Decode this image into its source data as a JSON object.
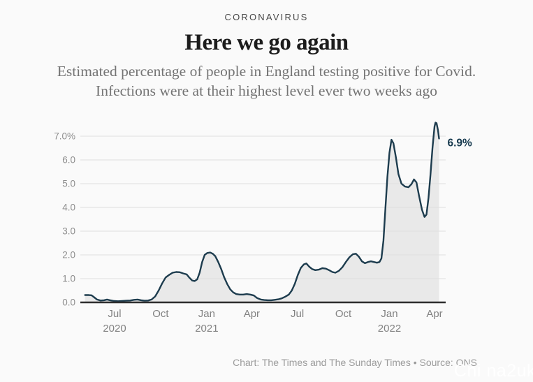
{
  "page": {
    "kicker": "CORONAVIRUS",
    "title": "Here we go again",
    "subtitle": "Estimated percentage of people in England testing positive for Covid. Infections were at their highest level ever two weeks ago",
    "footer": "Chart: The Times and The Sunday Times • Source: ONS",
    "watermark": "Chi na2uk"
  },
  "colors": {
    "background": "#fafafa",
    "line": "#1d3c4e",
    "area_fill": "#e9e9e9",
    "gridline": "#dedede",
    "zero_line": "#2e2e2e",
    "axis_text": "#8d8d8d",
    "end_label": "#16394e"
  },
  "chart_data": {
    "type": "area",
    "title": "Here we go again",
    "subtitle": "Estimated percentage of people in England testing positive for Covid. Infections were at their highest level ever two weeks ago",
    "series_name": "Estimated % of people in England testing positive for Covid",
    "unit": "%",
    "ylim": [
      0,
      7.6
    ],
    "grid": true,
    "legend": "none",
    "end_label": "6.9%",
    "y_ticks": [
      {
        "value": 7,
        "label": "7.0%"
      },
      {
        "value": 6,
        "label": "6.0"
      },
      {
        "value": 5,
        "label": "5.0"
      },
      {
        "value": 4,
        "label": "4.0"
      },
      {
        "value": 3,
        "label": "3.0"
      },
      {
        "value": 2,
        "label": "2.0"
      },
      {
        "value": 1,
        "label": "1.0"
      },
      {
        "value": 0,
        "label": "0.0"
      }
    ],
    "x_ticks": [
      {
        "date": "2020-07-01",
        "label": "Jul",
        "year": "2020"
      },
      {
        "date": "2020-10-01",
        "label": "Oct",
        "year": ""
      },
      {
        "date": "2021-01-01",
        "label": "Jan",
        "year": "2021"
      },
      {
        "date": "2021-04-01",
        "label": "Apr",
        "year": ""
      },
      {
        "date": "2021-07-01",
        "label": "Jul",
        "year": ""
      },
      {
        "date": "2021-10-01",
        "label": "Oct",
        "year": ""
      },
      {
        "date": "2022-01-01",
        "label": "Jan",
        "year": "2022"
      },
      {
        "date": "2022-04-01",
        "label": "Apr",
        "year": ""
      }
    ],
    "points": [
      [
        "2020-05-03",
        0.31
      ],
      [
        "2020-05-10",
        0.31
      ],
      [
        "2020-05-16",
        0.3
      ],
      [
        "2020-05-21",
        0.22
      ],
      [
        "2020-05-27",
        0.12
      ],
      [
        "2020-06-03",
        0.08
      ],
      [
        "2020-06-10",
        0.09
      ],
      [
        "2020-06-16",
        0.12
      ],
      [
        "2020-06-22",
        0.09
      ],
      [
        "2020-06-30",
        0.06
      ],
      [
        "2020-07-08",
        0.05
      ],
      [
        "2020-07-16",
        0.06
      ],
      [
        "2020-07-24",
        0.07
      ],
      [
        "2020-08-01",
        0.08
      ],
      [
        "2020-08-09",
        0.11
      ],
      [
        "2020-08-16",
        0.12
      ],
      [
        "2020-08-23",
        0.09
      ],
      [
        "2020-08-30",
        0.07
      ],
      [
        "2020-09-06",
        0.08
      ],
      [
        "2020-09-13",
        0.12
      ],
      [
        "2020-09-20",
        0.25
      ],
      [
        "2020-09-27",
        0.5
      ],
      [
        "2020-10-04",
        0.8
      ],
      [
        "2020-10-11",
        1.05
      ],
      [
        "2020-10-18",
        1.16
      ],
      [
        "2020-10-25",
        1.25
      ],
      [
        "2020-11-01",
        1.28
      ],
      [
        "2020-11-08",
        1.27
      ],
      [
        "2020-11-15",
        1.22
      ],
      [
        "2020-11-22",
        1.18
      ],
      [
        "2020-11-27",
        1.05
      ],
      [
        "2020-12-03",
        0.92
      ],
      [
        "2020-12-08",
        0.9
      ],
      [
        "2020-12-13",
        0.97
      ],
      [
        "2020-12-18",
        1.25
      ],
      [
        "2020-12-23",
        1.7
      ],
      [
        "2020-12-28",
        2.0
      ],
      [
        "2021-01-02",
        2.08
      ],
      [
        "2021-01-08",
        2.1
      ],
      [
        "2021-01-13",
        2.05
      ],
      [
        "2021-01-18",
        1.95
      ],
      [
        "2021-01-24",
        1.7
      ],
      [
        "2021-01-30",
        1.4
      ],
      [
        "2021-02-05",
        1.05
      ],
      [
        "2021-02-11",
        0.77
      ],
      [
        "2021-02-17",
        0.55
      ],
      [
        "2021-02-23",
        0.42
      ],
      [
        "2021-03-01",
        0.35
      ],
      [
        "2021-03-08",
        0.33
      ],
      [
        "2021-03-15",
        0.33
      ],
      [
        "2021-03-22",
        0.35
      ],
      [
        "2021-03-29",
        0.33
      ],
      [
        "2021-04-05",
        0.29
      ],
      [
        "2021-04-12",
        0.18
      ],
      [
        "2021-04-19",
        0.12
      ],
      [
        "2021-04-26",
        0.1
      ],
      [
        "2021-05-03",
        0.09
      ],
      [
        "2021-05-10",
        0.09
      ],
      [
        "2021-05-17",
        0.11
      ],
      [
        "2021-05-24",
        0.13
      ],
      [
        "2021-05-31",
        0.17
      ],
      [
        "2021-06-07",
        0.24
      ],
      [
        "2021-06-14",
        0.33
      ],
      [
        "2021-06-20",
        0.5
      ],
      [
        "2021-06-26",
        0.78
      ],
      [
        "2021-07-02",
        1.15
      ],
      [
        "2021-07-08",
        1.45
      ],
      [
        "2021-07-14",
        1.6
      ],
      [
        "2021-07-19",
        1.64
      ],
      [
        "2021-07-25",
        1.5
      ],
      [
        "2021-07-31",
        1.4
      ],
      [
        "2021-08-06",
        1.36
      ],
      [
        "2021-08-13",
        1.38
      ],
      [
        "2021-08-20",
        1.44
      ],
      [
        "2021-08-27",
        1.42
      ],
      [
        "2021-09-03",
        1.35
      ],
      [
        "2021-09-09",
        1.28
      ],
      [
        "2021-09-15",
        1.25
      ],
      [
        "2021-09-22",
        1.33
      ],
      [
        "2021-09-29",
        1.48
      ],
      [
        "2021-10-06",
        1.7
      ],
      [
        "2021-10-13",
        1.9
      ],
      [
        "2021-10-20",
        2.03
      ],
      [
        "2021-10-26",
        2.05
      ],
      [
        "2021-11-01",
        1.92
      ],
      [
        "2021-11-07",
        1.73
      ],
      [
        "2021-11-13",
        1.65
      ],
      [
        "2021-11-19",
        1.7
      ],
      [
        "2021-11-25",
        1.73
      ],
      [
        "2021-12-01",
        1.7
      ],
      [
        "2021-12-07",
        1.67
      ],
      [
        "2021-12-12",
        1.7
      ],
      [
        "2021-12-16",
        1.85
      ],
      [
        "2021-12-20",
        2.6
      ],
      [
        "2021-12-24",
        4.0
      ],
      [
        "2021-12-28",
        5.3
      ],
      [
        "2022-01-01",
        6.3
      ],
      [
        "2022-01-05",
        6.85
      ],
      [
        "2022-01-09",
        6.7
      ],
      [
        "2022-01-14",
        6.1
      ],
      [
        "2022-01-19",
        5.4
      ],
      [
        "2022-01-25",
        5.0
      ],
      [
        "2022-02-01",
        4.88
      ],
      [
        "2022-02-08",
        4.85
      ],
      [
        "2022-02-14",
        4.98
      ],
      [
        "2022-02-19",
        5.18
      ],
      [
        "2022-02-24",
        5.05
      ],
      [
        "2022-03-01",
        4.5
      ],
      [
        "2022-03-07",
        3.9
      ],
      [
        "2022-03-12",
        3.6
      ],
      [
        "2022-03-16",
        3.7
      ],
      [
        "2022-03-20",
        4.4
      ],
      [
        "2022-03-24",
        5.4
      ],
      [
        "2022-03-28",
        6.5
      ],
      [
        "2022-04-01",
        7.4
      ],
      [
        "2022-04-03",
        7.57
      ],
      [
        "2022-04-05",
        7.55
      ],
      [
        "2022-04-08",
        7.25
      ],
      [
        "2022-04-10",
        6.9
      ]
    ]
  }
}
